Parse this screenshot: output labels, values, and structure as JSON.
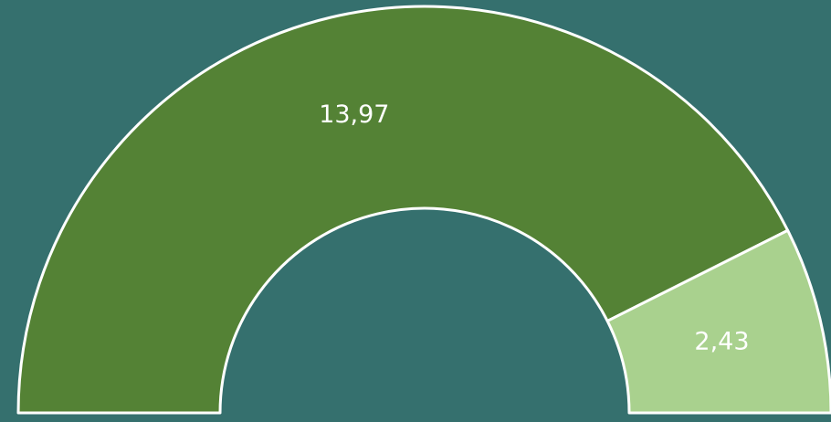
{
  "chart_data": {
    "type": "pie",
    "half": true,
    "values": [
      13.97,
      2.43
    ],
    "value_labels": [
      "13,97",
      "2,43"
    ],
    "colors": [
      "#548235",
      "#a9d18e"
    ]
  }
}
